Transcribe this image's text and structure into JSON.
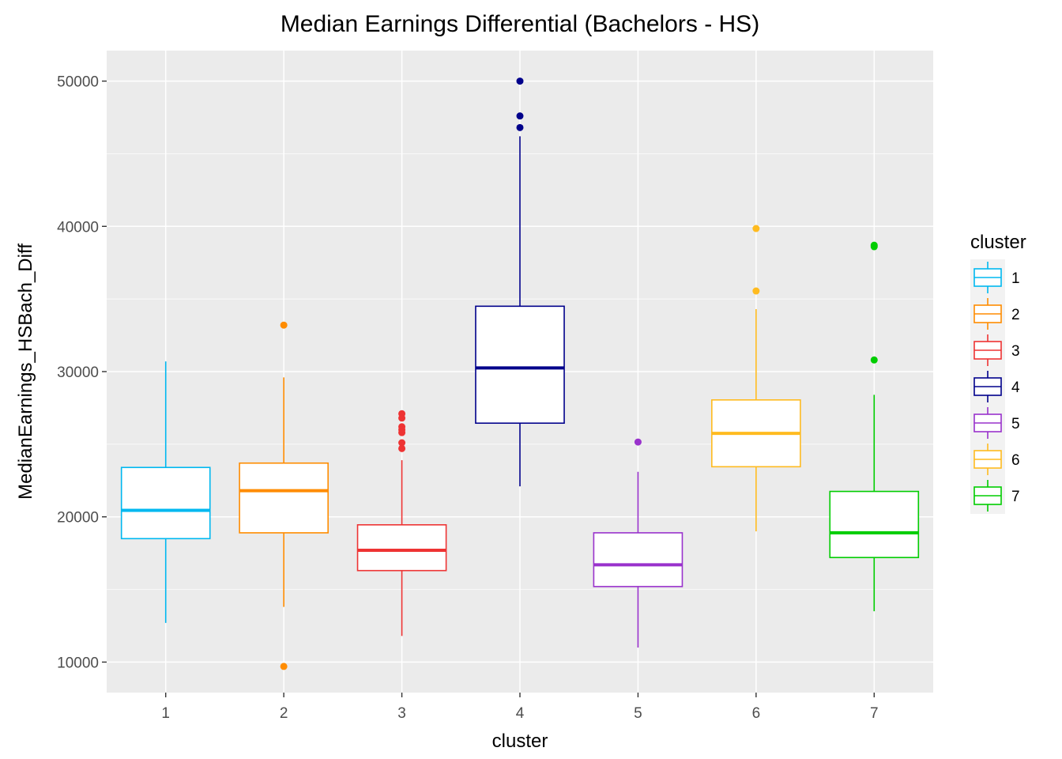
{
  "chart_data": {
    "type": "boxplot",
    "title": "Median Earnings Differential (Bachelors - HS)",
    "xlabel": "cluster",
    "ylabel": "MedianEarnings_HSBach_Diff",
    "categories": [
      "1",
      "2",
      "3",
      "4",
      "5",
      "6",
      "7"
    ],
    "ylim": [
      7900,
      52100
    ],
    "yticks": [
      10000,
      20000,
      30000,
      40000,
      50000
    ],
    "grid": true,
    "legend": {
      "title": "cluster",
      "position": "right"
    },
    "series": [
      {
        "name": "1",
        "color": "#00B8F0",
        "whisker_low": 12700,
        "q1": 18500,
        "median": 20450,
        "q3": 23400,
        "whisker_high": 30700,
        "outliers": []
      },
      {
        "name": "2",
        "color": "#FF8C00",
        "whisker_low": 13800,
        "q1": 18900,
        "median": 21800,
        "q3": 23700,
        "whisker_high": 29600,
        "outliers": [
          33200,
          9700
        ]
      },
      {
        "name": "3",
        "color": "#EE3333",
        "whisker_low": 11800,
        "q1": 16300,
        "median": 17700,
        "q3": 19450,
        "whisker_high": 23900,
        "outliers": [
          27100,
          26800,
          26200,
          26000,
          25800,
          25100,
          24700
        ]
      },
      {
        "name": "4",
        "color": "#00008B",
        "whisker_low": 22100,
        "q1": 26450,
        "median": 30250,
        "q3": 34500,
        "whisker_high": 46200,
        "outliers": [
          50000,
          47600,
          46800
        ]
      },
      {
        "name": "5",
        "color": "#9932CC",
        "whisker_low": 11000,
        "q1": 15200,
        "median": 16700,
        "q3": 18900,
        "whisker_high": 23100,
        "outliers": [
          25150
        ]
      },
      {
        "name": "6",
        "color": "#FFBB1F",
        "whisker_low": 19000,
        "q1": 23450,
        "median": 25750,
        "q3": 28050,
        "whisker_high": 34300,
        "outliers": [
          39850,
          35550
        ]
      },
      {
        "name": "7",
        "color": "#00CD00",
        "whisker_low": 13500,
        "q1": 17200,
        "median": 18900,
        "q3": 21750,
        "whisker_high": 28400,
        "outliers": [
          38600,
          38700,
          30800
        ]
      }
    ]
  }
}
